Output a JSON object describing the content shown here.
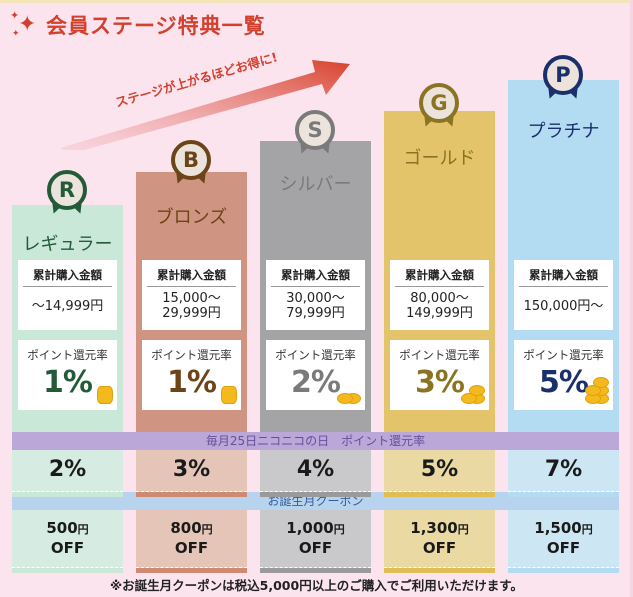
{
  "header": {
    "title": "会員ステージ特典一覧",
    "sparkle_icon": "sparkle-icon"
  },
  "arrow": {
    "caption": "ステージが上がるほどお得に!",
    "color": "#d2412e"
  },
  "tiers": [
    {
      "key": "regular",
      "letter": "R",
      "name": "レギュラー",
      "purchase_label": "累計購入金額",
      "purchase_amount_line1": "～14,999円",
      "purchase_amount_line2": "",
      "point_label": "ポイント還元率",
      "point_rate": "1%",
      "nikoniko_rate": "2%",
      "coupon_amount": "500",
      "coupon_unit": "円",
      "coupon_off": "OFF",
      "colors": {
        "bar": "#c9e8d8",
        "accent": "#235a37",
        "cell": "#d6ece2",
        "under": "#c9e8d8"
      }
    },
    {
      "key": "bronze",
      "letter": "B",
      "name": "ブロンズ",
      "purchase_label": "累計購入金額",
      "purchase_amount_line1": "15,000～",
      "purchase_amount_line2": "29,999円",
      "point_label": "ポイント還元率",
      "point_rate": "1%",
      "nikoniko_rate": "3%",
      "coupon_amount": "800",
      "coupon_unit": "円",
      "coupon_off": "OFF",
      "colors": {
        "bar": "#cf9582",
        "accent": "#6b4417",
        "cell": "#e6c5b9",
        "under": "#cf8a74"
      }
    },
    {
      "key": "silver",
      "letter": "S",
      "name": "シルバー",
      "purchase_label": "累計購入金額",
      "purchase_amount_line1": "30,000～",
      "purchase_amount_line2": "79,999円",
      "point_label": "ポイント還元率",
      "point_rate": "2%",
      "nikoniko_rate": "4%",
      "coupon_amount": "1,000",
      "coupon_unit": "円",
      "coupon_off": "OFF",
      "colors": {
        "bar": "#a4a3a6",
        "accent": "#7a7a7a",
        "cell": "#c9c8ca",
        "under": "#9a999c"
      }
    },
    {
      "key": "gold",
      "letter": "G",
      "name": "ゴールド",
      "purchase_label": "累計購入金額",
      "purchase_amount_line1": "80,000～",
      "purchase_amount_line2": "149,999円",
      "point_label": "ポイント還元率",
      "point_rate": "3%",
      "nikoniko_rate": "5%",
      "coupon_amount": "1,300",
      "coupon_unit": "円",
      "coupon_off": "OFF",
      "colors": {
        "bar": "#e4c46a",
        "accent": "#8a7423",
        "cell": "#ebd9a3",
        "under": "#e1bd55"
      }
    },
    {
      "key": "platinum",
      "letter": "P",
      "name": "プラチナ",
      "purchase_label": "累計購入金額",
      "purchase_amount_line1": "150,000円～",
      "purchase_amount_line2": "",
      "point_label": "ポイント還元率",
      "point_rate": "5%",
      "nikoniko_rate": "7%",
      "coupon_amount": "1,500",
      "coupon_unit": "円",
      "coupon_off": "OFF",
      "colors": {
        "bar": "#b3dcf3",
        "accent": "#1b2f6b",
        "cell": "#cde6f3",
        "under": "#b3dcf3"
      }
    }
  ],
  "bands": {
    "nikoniko_label": "毎月25日ニコニコの日　ポイント還元率",
    "birthday_label": "お誕生月クーポン"
  },
  "footnote": "※お誕生月クーポンは税込5,000円以上のご購入でご利用いただけます。"
}
